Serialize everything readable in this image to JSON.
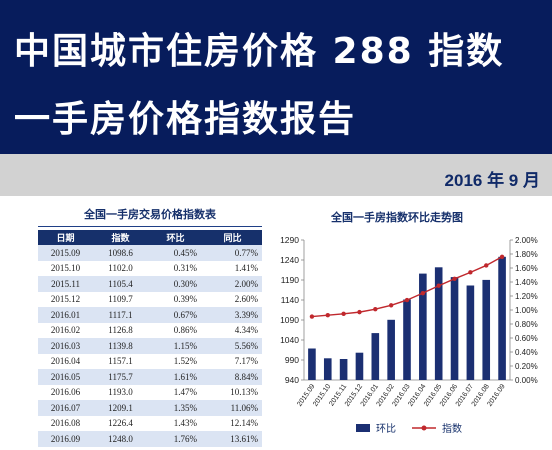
{
  "header": {
    "title_line1": "中国城市住房价格 288 指数",
    "title_line2": "一手房价格指数报告",
    "date": "2016 年 9 月"
  },
  "colors": {
    "banner": "#071c5c",
    "bar": "#1b2f72",
    "line": "#c0282d",
    "table_header": "#16306b",
    "table_stripe": "#dbe4f3"
  },
  "table": {
    "title": "全国一手房交易价格指数表",
    "columns": [
      "日期",
      "指数",
      "环比",
      "同比"
    ],
    "rows": [
      [
        "2015.09",
        "1098.6",
        "0.45%",
        "0.77%"
      ],
      [
        "2015.10",
        "1102.0",
        "0.31%",
        "1.41%"
      ],
      [
        "2015.11",
        "1105.4",
        "0.30%",
        "2.00%"
      ],
      [
        "2015.12",
        "1109.7",
        "0.39%",
        "2.60%"
      ],
      [
        "2016.01",
        "1117.1",
        "0.67%",
        "3.39%"
      ],
      [
        "2016.02",
        "1126.8",
        "0.86%",
        "4.34%"
      ],
      [
        "2016.03",
        "1139.8",
        "1.15%",
        "5.56%"
      ],
      [
        "2016.04",
        "1157.1",
        "1.52%",
        "7.17%"
      ],
      [
        "2016.05",
        "1175.7",
        "1.61%",
        "8.84%"
      ],
      [
        "2016.06",
        "1193.0",
        "1.47%",
        "10.13%"
      ],
      [
        "2016.07",
        "1209.1",
        "1.35%",
        "11.06%"
      ],
      [
        "2016.08",
        "1226.4",
        "1.43%",
        "12.14%"
      ],
      [
        "2016.09",
        "1248.0",
        "1.76%",
        "13.61%"
      ]
    ]
  },
  "chart_data": {
    "type": "bar",
    "title": "全国一手房指数环比走势图",
    "categories": [
      "2015.09",
      "2015.10",
      "2015.11",
      "2015.12",
      "2016.01",
      "2016.02",
      "2016.03",
      "2016.04",
      "2016.05",
      "2016.06",
      "2016.07",
      "2016.08",
      "2016.09"
    ],
    "series": [
      {
        "name": "环比",
        "type": "bar",
        "axis": "right",
        "values": [
          0.45,
          0.31,
          0.3,
          0.39,
          0.67,
          0.86,
          1.15,
          1.52,
          1.61,
          1.47,
          1.35,
          1.43,
          1.76
        ]
      },
      {
        "name": "指数",
        "type": "line",
        "axis": "left",
        "values": [
          1098.6,
          1102.0,
          1105.4,
          1109.7,
          1117.1,
          1126.8,
          1139.8,
          1157.1,
          1175.7,
          1193.0,
          1209.1,
          1226.4,
          1248.0
        ]
      }
    ],
    "y_left": {
      "min": 940,
      "max": 1290,
      "ticks": [
        "940",
        "990",
        "1040",
        "1090",
        "1140",
        "1190",
        "1240",
        "1290"
      ]
    },
    "y_right": {
      "min": 0,
      "max": 2,
      "ticks": [
        "0.00%",
        "0.20%",
        "0.40%",
        "0.60%",
        "0.80%",
        "1.00%",
        "1.20%",
        "1.40%",
        "1.60%",
        "1.80%",
        "2.00%"
      ]
    },
    "legend_position": "bottom",
    "grid": false
  }
}
